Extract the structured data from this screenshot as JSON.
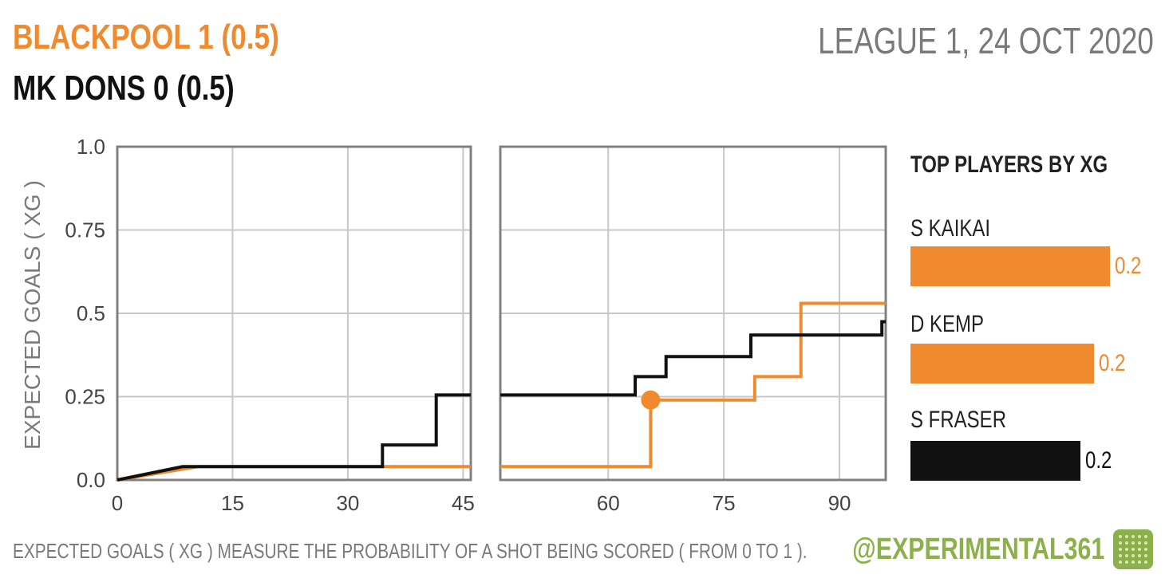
{
  "header": {
    "home": "BLACKPOOL  1  (0.5)",
    "away": "MK DONS  0  (0.5)",
    "match_info": "LEAGUE 1, 24 OCT 2020"
  },
  "colors": {
    "home": "#f08a2e",
    "away": "#111111",
    "grid": "#c8c8c8",
    "frame": "#808080",
    "brand": "#8cb04a"
  },
  "chart_data": {
    "type": "line",
    "ylabel": "EXPECTED GOALS ( XG )",
    "ylim": [
      0,
      1
    ],
    "yticks": [
      "0.0",
      "0.25",
      "0.5",
      "0.75",
      "1.0"
    ],
    "panels": [
      {
        "name": "first-half",
        "xlim": [
          0,
          46
        ],
        "xticks": [
          0,
          15,
          30,
          45
        ]
      },
      {
        "name": "second-half",
        "xlim": [
          46,
          96
        ],
        "xticks": [
          60,
          75,
          90
        ]
      }
    ],
    "series": [
      {
        "name": "BLACKPOOL",
        "color": "#f08a2e",
        "points": [
          [
            0,
            0
          ],
          [
            10.5,
            0.04
          ],
          [
            46,
            0.04
          ],
          [
            65.5,
            0.04
          ],
          [
            65.5,
            0.24
          ],
          [
            79,
            0.24
          ],
          [
            79,
            0.31
          ],
          [
            85,
            0.31
          ],
          [
            85,
            0.53
          ],
          [
            96,
            0.53
          ]
        ],
        "goals": [
          [
            65.5,
            0.24
          ]
        ]
      },
      {
        "name": "MK DONS",
        "color": "#111111",
        "points": [
          [
            0,
            0
          ],
          [
            8.5,
            0.04
          ],
          [
            10.5,
            0.04
          ],
          [
            34.5,
            0.04
          ],
          [
            34.5,
            0.105
          ],
          [
            41.5,
            0.105
          ],
          [
            41.5,
            0.255
          ],
          [
            46,
            0.255
          ],
          [
            63.5,
            0.255
          ],
          [
            63.5,
            0.31
          ],
          [
            67.5,
            0.31
          ],
          [
            67.5,
            0.37
          ],
          [
            78.5,
            0.37
          ],
          [
            78.5,
            0.435
          ],
          [
            95.5,
            0.435
          ],
          [
            95.5,
            0.475
          ],
          [
            96,
            0.475
          ]
        ]
      }
    ]
  },
  "sidebar": {
    "title": "TOP PLAYERS BY XG",
    "players": [
      {
        "name": "S KAIKAI",
        "value": "0.2",
        "fraction": 1.0,
        "color": "#f08a2e"
      },
      {
        "name": "D KEMP",
        "value": "0.2",
        "fraction": 0.92,
        "color": "#f08a2e"
      },
      {
        "name": "S FRASER",
        "value": "0.2",
        "fraction": 0.85,
        "color": "#111111"
      }
    ]
  },
  "footer": {
    "note": "EXPECTED GOALS ( XG ) MEASURE THE PROBABILITY  OF A SHOT BEING SCORED ( FROM 0 TO 1 ).",
    "handle": "@EXPERIMENTAL361",
    "logo_icon": "pitch-icon"
  }
}
